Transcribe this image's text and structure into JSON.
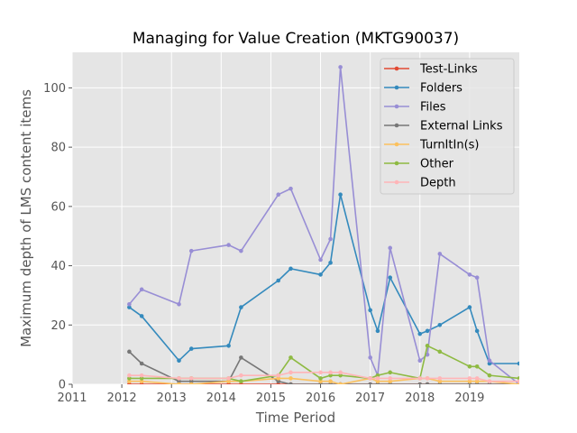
{
  "chart_data": {
    "type": "line",
    "title": "Managing for Value Creation (MKTG90037)",
    "xlabel": "Time Period",
    "ylabel": "Maximum depth of LMS content items",
    "xlim": [
      2011,
      2020
    ],
    "ylim": [
      0,
      112
    ],
    "xticks": [
      "2011",
      "2012",
      "2013",
      "2014",
      "2015",
      "2016",
      "2017",
      "2018",
      "2019"
    ],
    "yticks": [
      "0",
      "20",
      "40",
      "60",
      "80",
      "100"
    ],
    "grid": true,
    "legend_position": "top-right",
    "x": [
      2012.15,
      2012.4,
      2013.15,
      2013.4,
      2014.15,
      2014.4,
      2015.15,
      2015.4,
      2016.0,
      2016.2,
      2016.4,
      2017.0,
      2017.15,
      2017.4,
      2018.0,
      2018.15,
      2018.4,
      2019.0,
      2019.15,
      2019.4,
      2020.0
    ],
    "series": [
      {
        "name": "Test-Links",
        "color": "#E24A33",
        "values": [
          0,
          0,
          0,
          0,
          0,
          0,
          0,
          0,
          0,
          0,
          0,
          0,
          0,
          0,
          0,
          0,
          0,
          0,
          0,
          0,
          0
        ]
      },
      {
        "name": "Folders",
        "color": "#348ABD",
        "values": [
          26,
          23,
          8,
          12,
          13,
          26,
          35,
          39,
          37,
          41,
          64,
          25,
          18,
          36,
          17,
          18,
          20,
          26,
          18,
          7,
          7
        ]
      },
      {
        "name": "Files",
        "color": "#988ED5",
        "values": [
          27,
          32,
          27,
          45,
          47,
          45,
          64,
          66,
          42,
          49,
          107,
          9,
          3,
          46,
          8,
          10,
          44,
          37,
          36,
          8,
          0
        ]
      },
      {
        "name": "External Links",
        "color": "#777777",
        "values": [
          11,
          7,
          1,
          1,
          1,
          9,
          1,
          0,
          0,
          0,
          0,
          0,
          0,
          0,
          0,
          0,
          0,
          0,
          0,
          0,
          0
        ]
      },
      {
        "name": "TurnItIn(s)",
        "color": "#FBC15E",
        "values": [
          1,
          1,
          0,
          0,
          1,
          1,
          2,
          2,
          1,
          1,
          0,
          2,
          1,
          1,
          2,
          2,
          1,
          1,
          1,
          1,
          0
        ]
      },
      {
        "name": "Other",
        "color": "#8EBA42",
        "values": [
          2,
          2,
          2,
          2,
          2,
          1,
          3,
          9,
          2,
          3,
          3,
          2,
          3,
          4,
          2,
          13,
          11,
          6,
          6,
          3,
          2
        ]
      },
      {
        "name": "Depth",
        "color": "#FFB5B8",
        "values": [
          3,
          3,
          2,
          2,
          2,
          3,
          3,
          4,
          4,
          4,
          4,
          2,
          2,
          2,
          2,
          2,
          2,
          2,
          2,
          1,
          1
        ]
      }
    ]
  }
}
